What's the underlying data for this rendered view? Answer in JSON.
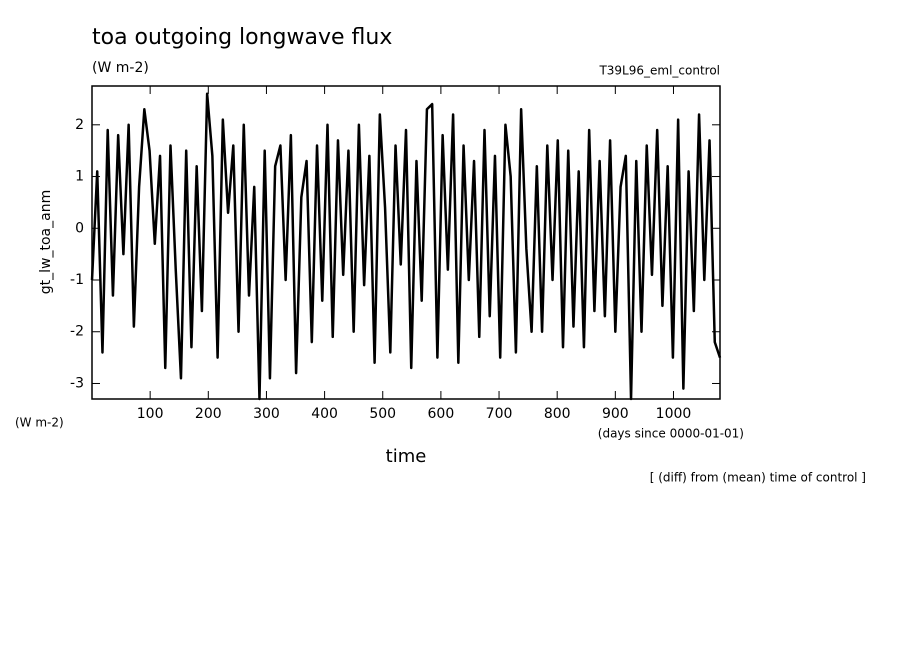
{
  "chart_data": {
    "type": "line",
    "title": "toa outgoing longwave flux",
    "subtitle": "(W m-2)",
    "annotation": "T39L96_eml_control",
    "ylabel": "gt_lw_toa_anm",
    "y_unit": "(W m-2)",
    "xlabel": "time",
    "x_unit": "(days since 0000-01-01)",
    "note": "[ (diff) from (mean) time of control ]",
    "color": "#000000",
    "xlim": [
      0,
      1080
    ],
    "ylim": [
      -3.3,
      2.75
    ],
    "xticks": [
      100,
      200,
      300,
      400,
      500,
      600,
      700,
      800,
      900,
      1000
    ],
    "yticks": [
      -3,
      -2,
      -1,
      0,
      1,
      2
    ],
    "x": [
      0,
      9,
      18,
      27,
      36,
      45,
      54,
      63,
      72,
      81,
      90,
      99,
      108,
      117,
      126,
      135,
      144,
      153,
      162,
      171,
      180,
      189,
      198,
      207,
      216,
      225,
      234,
      243,
      252,
      261,
      270,
      279,
      288,
      297,
      306,
      315,
      324,
      333,
      342,
      351,
      360,
      369,
      378,
      387,
      396,
      405,
      414,
      423,
      432,
      441,
      450,
      459,
      468,
      477,
      486,
      495,
      504,
      513,
      522,
      531,
      540,
      549,
      558,
      567,
      576,
      585,
      594,
      603,
      612,
      621,
      630,
      639,
      648,
      657,
      666,
      675,
      684,
      693,
      702,
      711,
      720,
      729,
      738,
      747,
      756,
      765,
      774,
      783,
      792,
      801,
      810,
      819,
      828,
      837,
      846,
      855,
      864,
      873,
      882,
      891,
      900,
      909,
      918,
      927,
      936,
      945,
      954,
      963,
      972,
      981,
      990,
      999,
      1008,
      1017,
      1026,
      1035,
      1044,
      1053,
      1062,
      1071,
      1080
    ],
    "values": [
      -1.0,
      1.1,
      -2.4,
      1.9,
      -1.3,
      1.8,
      -0.5,
      2.0,
      -1.9,
      0.8,
      2.3,
      1.5,
      -0.3,
      1.4,
      -2.7,
      1.6,
      -0.8,
      -2.9,
      1.5,
      -2.3,
      1.2,
      -1.6,
      2.6,
      1.4,
      -2.5,
      2.1,
      0.3,
      1.6,
      -2.0,
      2.0,
      -1.3,
      0.8,
      -3.3,
      1.5,
      -2.9,
      1.2,
      1.6,
      -1.0,
      1.8,
      -2.8,
      0.6,
      1.3,
      -2.2,
      1.6,
      -1.4,
      2.0,
      -2.1,
      1.7,
      -0.9,
      1.5,
      -2.0,
      2.0,
      -1.1,
      1.4,
      -2.6,
      2.2,
      0.4,
      -2.4,
      1.6,
      -0.7,
      1.9,
      -2.7,
      1.3,
      -1.4,
      2.3,
      2.4,
      -2.5,
      1.8,
      -0.8,
      2.2,
      -2.6,
      1.6,
      -1.0,
      1.3,
      -2.1,
      1.9,
      -1.7,
      1.4,
      -2.5,
      2.0,
      1.0,
      -2.4,
      2.3,
      -0.4,
      -2.0,
      1.2,
      -2.0,
      1.6,
      -1.0,
      1.7,
      -2.3,
      1.5,
      -1.9,
      1.1,
      -2.3,
      1.9,
      -1.6,
      1.3,
      -1.7,
      1.7,
      -2.0,
      0.8,
      1.4,
      -3.3,
      1.3,
      -2.0,
      1.6,
      -0.9,
      1.9,
      -1.5,
      1.2,
      -2.5,
      2.1,
      -3.1,
      1.1,
      -1.6,
      2.2,
      -1.0,
      1.7,
      -2.2,
      -2.5
    ]
  }
}
